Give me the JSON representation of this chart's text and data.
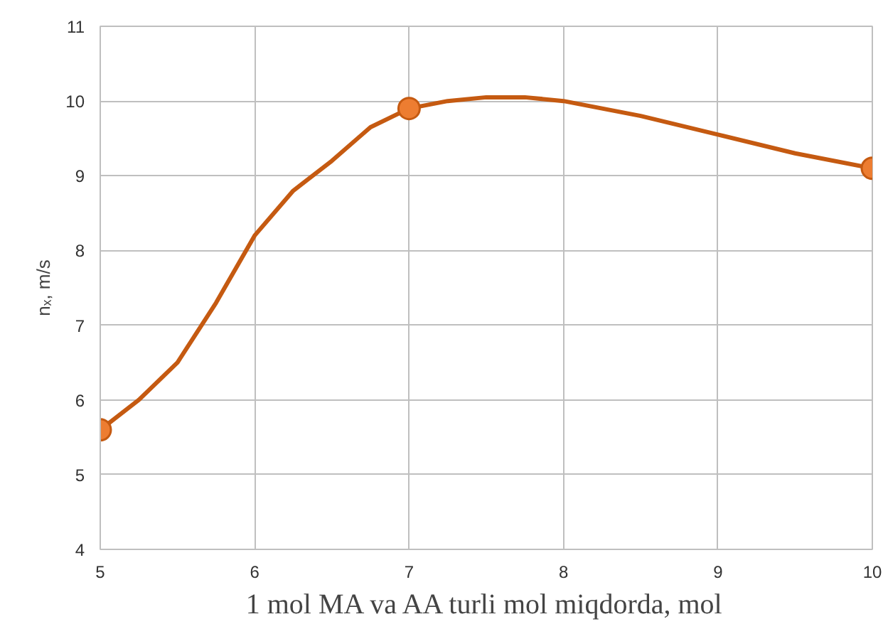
{
  "chart_data": {
    "type": "line",
    "xlabel": "1 mol MA va AA turli mol miqdorda, mol",
    "ylabel": "nₓ, m/s",
    "series": [
      {
        "color": "#c55a11",
        "marker": "none",
        "x": [
          5,
          5.25,
          5.5,
          5.75,
          6,
          6.25,
          6.5,
          6.75,
          7,
          7.25,
          7.5,
          7.75,
          8,
          8.5,
          9,
          9.5,
          10
        ],
        "values": [
          5.6,
          6.0,
          6.5,
          7.3,
          8.2,
          8.8,
          9.2,
          9.65,
          9.9,
          10.0,
          10.05,
          10.05,
          10.0,
          9.8,
          9.55,
          9.3,
          9.1
        ]
      },
      {
        "type": "scatter",
        "marker": "circle",
        "color": "#ed7d31",
        "x": [
          5,
          7,
          10
        ],
        "values": [
          5.6,
          9.9,
          9.1
        ]
      }
    ],
    "xlim": [
      5,
      10
    ],
    "xticks": [
      5,
      6,
      7,
      8,
      9,
      10
    ],
    "ylim": [
      4,
      11
    ],
    "yticks": [
      4,
      5,
      6,
      7,
      8,
      9,
      10,
      11
    ],
    "grid": true,
    "line_style": "solid"
  }
}
